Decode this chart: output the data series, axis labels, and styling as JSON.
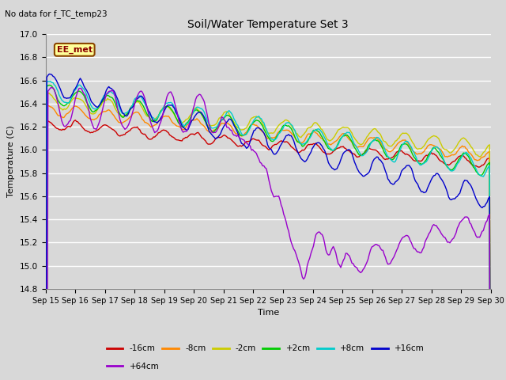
{
  "title": "Soil/Water Temperature Set 3",
  "xlabel": "Time",
  "ylabel": "Temperature (C)",
  "no_data_text": "No data for f_TC_temp23",
  "ee_met_label": "EE_met",
  "ylim": [
    14.8,
    17.0
  ],
  "x_tick_labels": [
    "Sep 15",
    "Sep 16",
    "Sep 17",
    "Sep 18",
    "Sep 19",
    "Sep 20",
    "Sep 21",
    "Sep 22",
    "Sep 23",
    "Sep 24",
    "Sep 25",
    "Sep 26",
    "Sep 27",
    "Sep 28",
    "Sep 29",
    "Sep 30"
  ],
  "series_colors": {
    "-16cm": "#cc0000",
    "-8cm": "#ff8800",
    "-2cm": "#cccc00",
    "+2cm": "#00cc00",
    "+8cm": "#00cccc",
    "+16cm": "#0000cc",
    "+64cm": "#9900cc"
  },
  "bg_color": "#d8d8d8",
  "grid_color": "#ffffff",
  "fig_bg": "#d8d8d8"
}
